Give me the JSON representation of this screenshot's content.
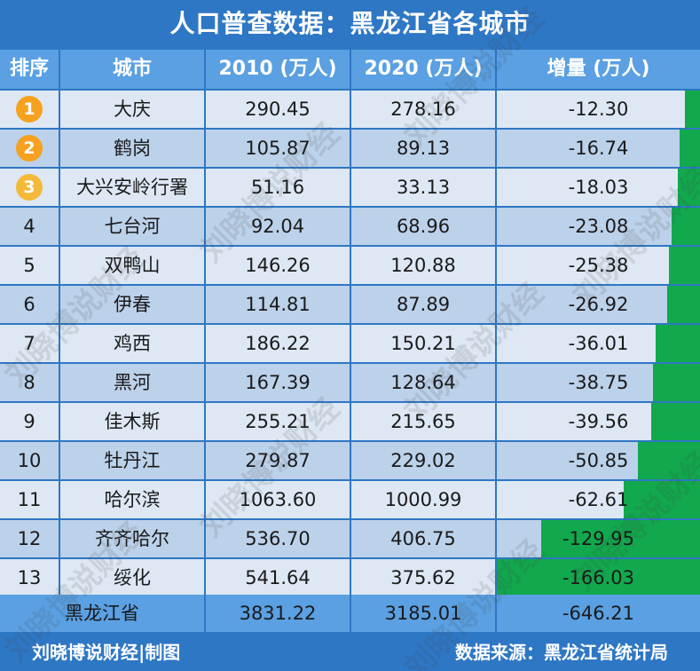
{
  "title": "人口普查数据：黑龙江省各城市",
  "header": {
    "rank": "排序",
    "city": "城市",
    "y2010": "2010 (万人)",
    "y2020": "2020 (万人)",
    "delta": "增量 (万人)"
  },
  "colors": {
    "background": "#2e77c4",
    "header": "#5aa0e2",
    "row_light": "#dde8f4",
    "row_dark": "#bcd1ea",
    "bar": "#12a84d",
    "medal": "#f6a11f"
  },
  "chart_data": {
    "type": "table",
    "title": "人口普查数据：黑龙江省各城市",
    "columns": [
      "排序",
      "城市",
      "2010 (万人)",
      "2020 (万人)",
      "增量 (万人)"
    ],
    "rows": [
      {
        "rank": "1",
        "city": "大庆",
        "y2010": "290.45",
        "y2020": "278.16",
        "delta": "-12.30",
        "delta_value": -12.3,
        "medal": true
      },
      {
        "rank": "2",
        "city": "鹤岗",
        "y2010": "105.87",
        "y2020": "89.13",
        "delta": "-16.74",
        "delta_value": -16.74,
        "medal": true
      },
      {
        "rank": "3",
        "city": "大兴安岭行署",
        "y2010": "51.16",
        "y2020": "33.13",
        "delta": "-18.03",
        "delta_value": -18.03,
        "medal": true
      },
      {
        "rank": "4",
        "city": "七台河",
        "y2010": "92.04",
        "y2020": "68.96",
        "delta": "-23.08",
        "delta_value": -23.08,
        "medal": false
      },
      {
        "rank": "5",
        "city": "双鸭山",
        "y2010": "146.26",
        "y2020": "120.88",
        "delta": "-25.38",
        "delta_value": -25.38,
        "medal": false
      },
      {
        "rank": "6",
        "city": "伊春",
        "y2010": "114.81",
        "y2020": "87.89",
        "delta": "-26.92",
        "delta_value": -26.92,
        "medal": false
      },
      {
        "rank": "7",
        "city": "鸡西",
        "y2010": "186.22",
        "y2020": "150.21",
        "delta": "-36.01",
        "delta_value": -36.01,
        "medal": false
      },
      {
        "rank": "8",
        "city": "黑河",
        "y2010": "167.39",
        "y2020": "128.64",
        "delta": "-38.75",
        "delta_value": -38.75,
        "medal": false
      },
      {
        "rank": "9",
        "city": "佳木斯",
        "y2010": "255.21",
        "y2020": "215.65",
        "delta": "-39.56",
        "delta_value": -39.56,
        "medal": false
      },
      {
        "rank": "10",
        "city": "牡丹江",
        "y2010": "279.87",
        "y2020": "229.02",
        "delta": "-50.85",
        "delta_value": -50.85,
        "medal": false
      },
      {
        "rank": "11",
        "city": "哈尔滨",
        "y2010": "1063.60",
        "y2020": "1000.99",
        "delta": "-62.61",
        "delta_value": -62.61,
        "medal": false
      },
      {
        "rank": "12",
        "city": "齐齐哈尔",
        "y2010": "536.70",
        "y2020": "406.75",
        "delta": "-129.95",
        "delta_value": -129.95,
        "medal": false
      },
      {
        "rank": "13",
        "city": "绥化",
        "y2010": "541.64",
        "y2020": "375.62",
        "delta": "-166.03",
        "delta_value": -166.03,
        "medal": false
      }
    ],
    "total": {
      "city": "黑龙江省",
      "y2010": "3831.22",
      "y2020": "3185.01",
      "delta": "-646.21"
    },
    "bar_max": 166.03
  },
  "footer": {
    "left": "刘晓博说财经|制图",
    "right": "数据来源：黑龙江省统计局"
  },
  "watermark": "刘晓博说财经"
}
